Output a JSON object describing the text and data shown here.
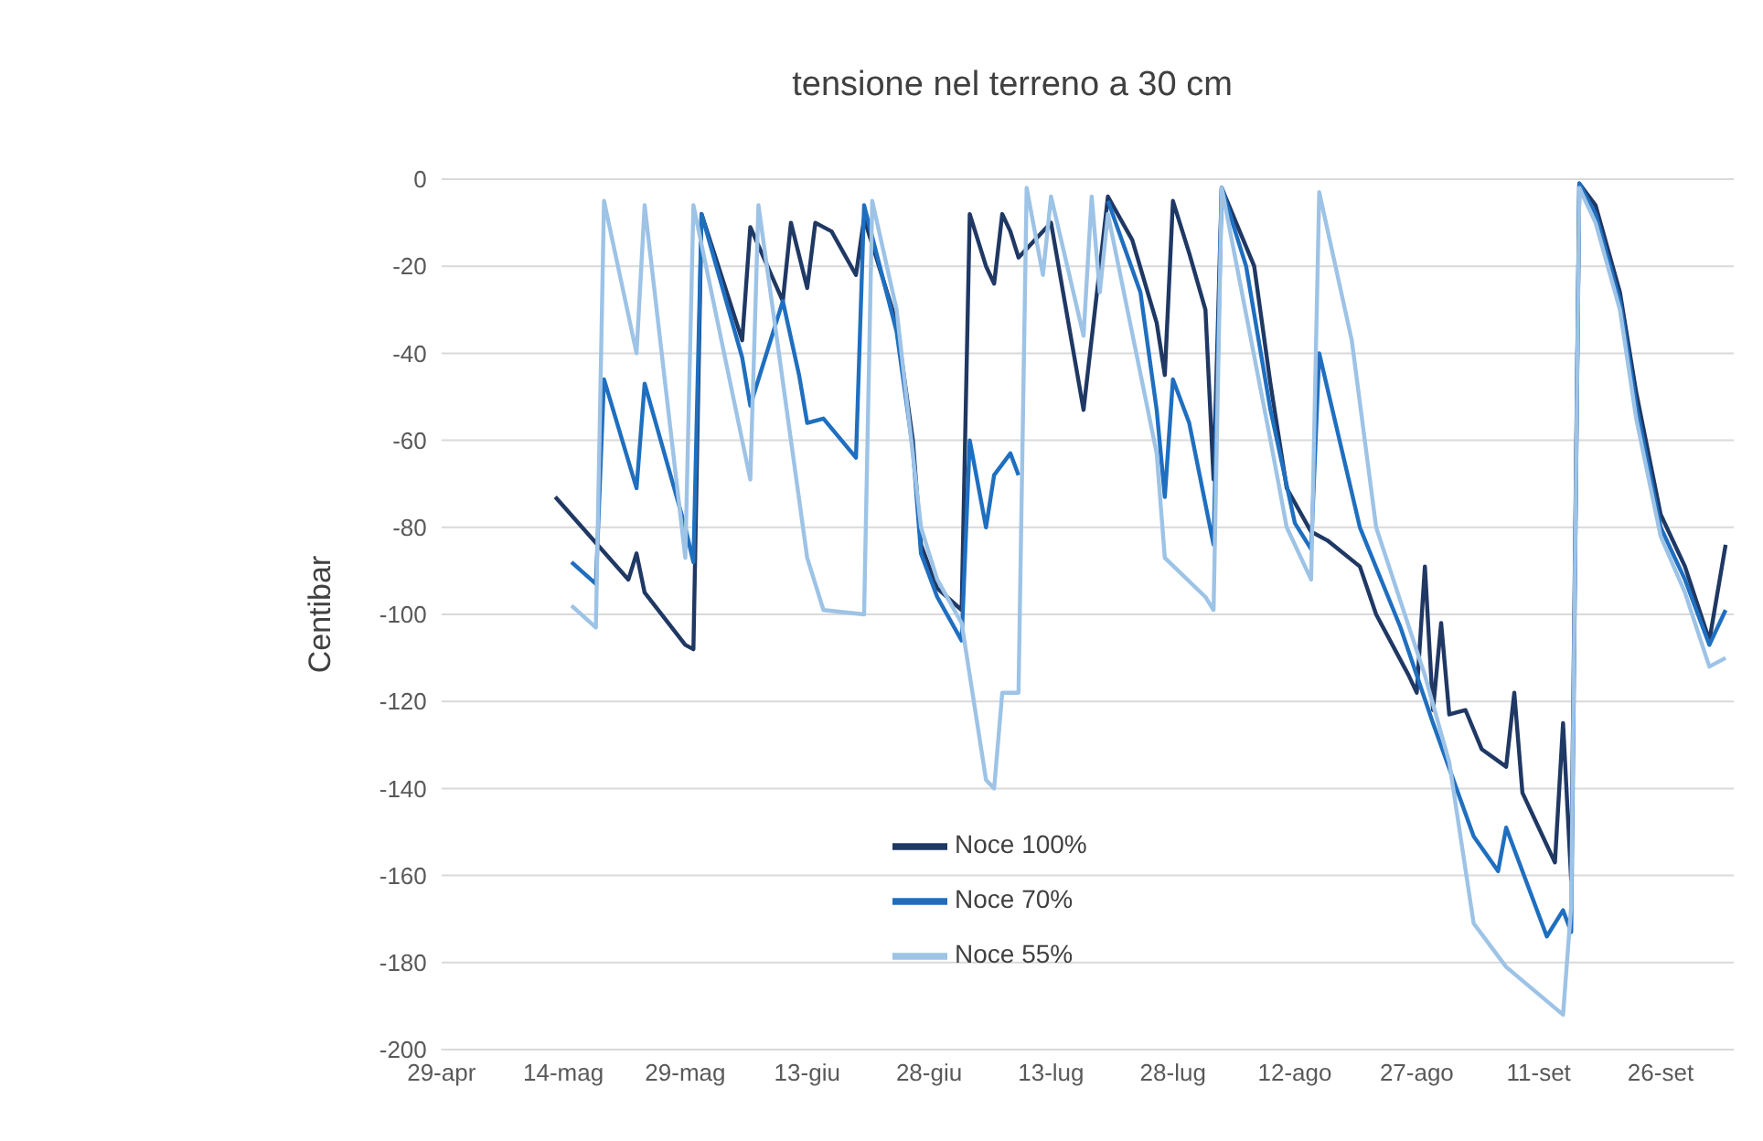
{
  "chart_data": {
    "type": "line",
    "title": "tensione nel terreno a 30 cm",
    "ylabel": "Centibar",
    "xlim": [
      "--04-29",
      "--10-05"
    ],
    "xticks": [
      {
        "value": "--04-29",
        "label": "29-apr"
      },
      {
        "value": "--05-14",
        "label": "14-mag"
      },
      {
        "value": "--05-29",
        "label": "29-mag"
      },
      {
        "value": "--06-13",
        "label": "13-giu"
      },
      {
        "value": "--06-28",
        "label": "28-giu"
      },
      {
        "value": "--07-13",
        "label": "13-lug"
      },
      {
        "value": "--07-28",
        "label": "28-lug"
      },
      {
        "value": "--08-12",
        "label": "12-ago"
      },
      {
        "value": "--08-27",
        "label": "27-ago"
      },
      {
        "value": "--09-11",
        "label": "11-set"
      },
      {
        "value": "--09-26",
        "label": "26-set"
      }
    ],
    "ylim": [
      -200,
      0
    ],
    "yticks": [
      -200,
      -180,
      -160,
      -140,
      -120,
      -100,
      -80,
      -60,
      -40,
      -20,
      0
    ],
    "grid": "y",
    "legend": "bottom",
    "marker": "none",
    "line_style": "solid",
    "series": [
      {
        "name": "Noce 100%",
        "color": "#1f3864",
        "x": [
          "--05-13",
          "--05-22",
          "--05-23",
          "--05-24",
          "--05-29",
          "--05-30",
          "--05-31",
          "--06-05",
          "--06-06",
          "--06-10",
          "--06-11",
          "--06-13",
          "--06-14",
          "--06-16",
          "--06-19",
          "--06-20",
          "--06-24",
          "--06-26",
          "--06-27",
          "--06-29",
          "--07-02",
          "--07-03",
          "--07-05",
          "--07-06",
          "--07-07",
          "--07-08",
          "--07-09",
          "--07-13",
          "--07-17",
          "--07-20",
          "--07-23",
          "--07-26",
          "--07-27",
          "--07-28",
          "--07-30",
          "--08-01",
          "--08-02",
          "--08-03",
          "--08-07",
          "--08-09",
          "--08-11",
          "--08-14",
          "--08-16",
          "--08-20",
          "--08-22",
          "--08-26",
          "--08-27",
          "--08-28",
          "--08-29",
          "--08-30",
          "--08-31",
          "--09-02",
          "--09-04",
          "--09-07",
          "--09-08",
          "--09-09",
          "--09-11",
          "--09-13",
          "--09-14",
          "--09-15",
          "--09-16",
          "--09-18",
          "--09-21",
          "--09-23",
          "--09-26",
          "--09-29",
          "--10-02",
          "--10-04"
        ],
        "values": [
          -73,
          -92,
          -86,
          -95,
          -107,
          -108,
          -8,
          -37,
          -11,
          -28,
          -10,
          -25,
          -10,
          -12,
          -22,
          -9,
          -33,
          -60,
          -84,
          -94,
          -99,
          -8,
          -20,
          -24,
          -8,
          -12,
          -18,
          -10,
          -53,
          -4,
          -14,
          -33,
          -45,
          -5,
          -17,
          -30,
          -69,
          -2,
          -20,
          -47,
          -71,
          -81,
          -83,
          -89,
          -100,
          -114,
          -118,
          -89,
          -122,
          -102,
          -123,
          -122,
          -131,
          -135,
          -118,
          -141,
          -149,
          -157,
          -125,
          -161,
          -1,
          -6,
          -26,
          -49,
          -77,
          -89,
          -106,
          -84
        ]
      },
      {
        "name": "Noce 70%",
        "color": "#1f6fc0",
        "x": [
          "--05-15",
          "--05-18",
          "--05-19",
          "--05-23",
          "--05-24",
          "--05-29",
          "--05-30",
          "--05-31",
          "--06-05",
          "--06-06",
          "--06-10",
          "--06-12",
          "--06-13",
          "--06-15",
          "--06-19",
          "--06-20",
          "--06-24",
          "--06-26",
          "--06-27",
          "--06-29",
          "--07-02",
          "--07-03",
          "--07-05",
          "--07-06",
          "--07-08",
          "--07-09",
          "--07-10",
          "--07-20",
          "--07-24",
          "--07-26",
          "--07-27",
          "--07-28",
          "--07-30",
          "--08-02",
          "--08-03",
          "--08-06",
          "--08-09",
          "--08-12",
          "--08-14",
          "--08-15",
          "--08-20",
          "--08-25",
          "--08-29",
          "--09-03",
          "--09-06",
          "--09-07",
          "--09-12",
          "--09-14",
          "--09-15",
          "--09-16",
          "--09-18",
          "--09-21",
          "--09-23",
          "--09-26",
          "--09-29",
          "--10-02",
          "--10-04"
        ],
        "values": [
          -88,
          -93,
          -46,
          -71,
          -47,
          -80,
          -88,
          -8,
          -41,
          -52,
          -28,
          -45,
          -56,
          -55,
          -64,
          -6,
          -35,
          -62,
          -86,
          -96,
          -106,
          -60,
          -80,
          -68,
          -63,
          -68,
          null,
          -5,
          -26,
          -53,
          -73,
          -46,
          -56,
          -84,
          -2,
          -20,
          -53,
          -79,
          -85,
          -40,
          -80,
          -103,
          -125,
          -151,
          -159,
          -149,
          -174,
          -168,
          -173,
          -1,
          -8,
          -28,
          -52,
          -80,
          -92,
          -107,
          -99
        ]
      },
      {
        "name": "Noce 55%",
        "color": "#9dc3e6",
        "x": [
          "--05-15",
          "--05-18",
          "--05-19",
          "--05-23",
          "--05-24",
          "--05-29",
          "--05-30",
          "--06-02",
          "--06-06",
          "--06-07",
          "--06-11",
          "--06-13",
          "--06-15",
          "--06-20",
          "--06-21",
          "--06-24",
          "--06-27",
          "--06-29",
          "--07-02",
          "--07-05",
          "--07-06",
          "--07-07",
          "--07-09",
          "--07-10",
          "--07-12",
          "--07-13",
          "--07-17",
          "--07-18",
          "--07-19",
          "--07-20",
          "--07-26",
          "--07-27",
          "--08-01",
          "--08-02",
          "--08-03",
          "--08-09",
          "--08-11",
          "--08-14",
          "--08-15",
          "--08-19",
          "--08-22",
          "--08-28",
          "--08-31",
          "--09-03",
          "--09-07",
          "--09-14",
          "--09-15",
          "--09-16",
          "--09-18",
          "--09-21",
          "--09-23",
          "--09-26",
          "--09-29",
          "--10-02",
          "--10-04"
        ],
        "values": [
          -98,
          -103,
          -5,
          -40,
          -6,
          -87,
          -6,
          -33,
          -69,
          -6,
          -60,
          -87,
          -99,
          -100,
          -5,
          -30,
          -80,
          -92,
          -102,
          -138,
          -140,
          -118,
          -118,
          -2,
          -22,
          -4,
          -36,
          -4,
          -26,
          -8,
          -63,
          -87,
          -96,
          -99,
          -2,
          -60,
          -80,
          -92,
          -3,
          -37,
          -80,
          -114,
          -134,
          -171,
          -181,
          -192,
          -167,
          -2,
          -10,
          -30,
          -55,
          -82,
          -95,
          -112,
          -110
        ]
      }
    ]
  }
}
